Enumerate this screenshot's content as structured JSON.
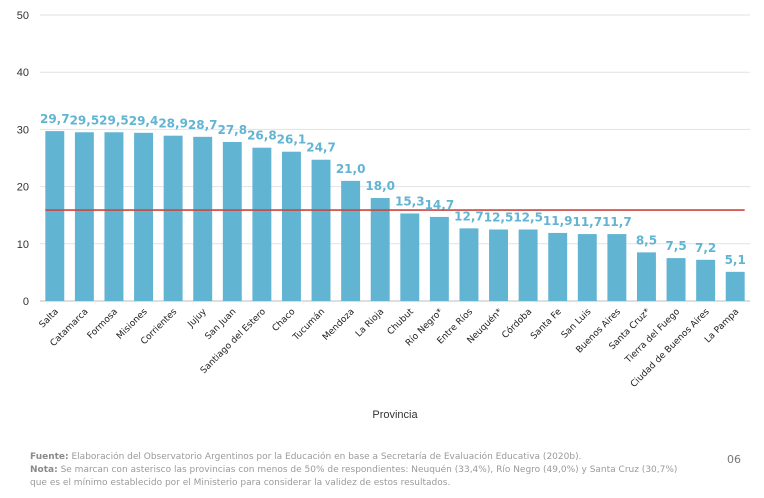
{
  "chart_data": {
    "type": "bar",
    "categories": [
      "Salta",
      "Catamarca",
      "Formosa",
      "Misiones",
      "Corrientes",
      "Jujuy",
      "San Juan",
      "Santiago del Estero",
      "Chaco",
      "Tucumán",
      "Mendoza",
      "La Rioja",
      "Chubut",
      "Río Negro*",
      "Entre Ríos",
      "Neuquén*",
      "Córdoba",
      "Santa Fe",
      "San Luis",
      "Buenos Aires",
      "Santa Cruz*",
      "Tierra del Fuego",
      "Ciudad de Buenos Aires",
      "La Pampa"
    ],
    "values": [
      29.7,
      29.5,
      29.5,
      29.4,
      28.9,
      28.7,
      27.8,
      26.8,
      26.1,
      24.7,
      21.0,
      18.0,
      15.3,
      14.7,
      12.7,
      12.5,
      12.5,
      11.9,
      11.7,
      11.7,
      8.5,
      7.5,
      7.2,
      5.1
    ],
    "value_labels": [
      "29,7",
      "29,5",
      "29,5",
      "29,4",
      "28,9",
      "28,7",
      "27,8",
      "26,8",
      "26,1",
      "24,7",
      "21,0",
      "18,0",
      "15,3",
      "14,7",
      "12,7",
      "12,5",
      "12,5",
      "11,9",
      "11,7",
      "11,7",
      "8,5",
      "7,5",
      "7,2",
      "5,1"
    ],
    "reference_line": 15.9,
    "ylim": [
      0,
      50
    ],
    "yticks": [
      "0",
      "10",
      "20",
      "30",
      "40",
      "50"
    ],
    "xlabel": "Provincia",
    "ylabel": "",
    "title": "",
    "grid": true,
    "bar_color": "#62b4d3",
    "label_color": "#62b4d3",
    "line_color": "#c9473f"
  },
  "footer": {
    "fuente_label": "Fuente:",
    "fuente_text": " Elaboración del Observatorio Argentinos por la Educación en base a Secretaría de Evaluación Educativa (2020b).",
    "nota_label": "Nota:",
    "nota_text": " Se marcan con asterisco las provincias con menos de 50% de respondientes: Neuquén (33,4%), Río Negro (49,0%) y Santa Cruz (30,7%)",
    "nota_text_2": "que es el mínimo establecido por el Ministerio para considerar la validez de estos resultados.",
    "page_number": "06"
  }
}
